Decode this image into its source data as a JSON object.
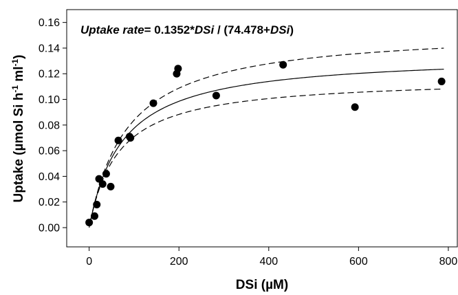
{
  "chart_data": {
    "type": "scatter",
    "title": "",
    "xlabel": "DSi (µM)",
    "ylabel": {
      "prefix": "Uptake (µmol Si h",
      "sup1": "-1",
      "middle": " ml",
      "sup2": "-1",
      "suffix": ")"
    },
    "xlim": [
      -50,
      820
    ],
    "ylim": [
      -0.015,
      0.17
    ],
    "x_ticks": [
      0,
      200,
      400,
      600,
      800
    ],
    "y_ticks": [
      0.0,
      0.02,
      0.04,
      0.06,
      0.08,
      0.1,
      0.12,
      0.14,
      0.16
    ],
    "y_tick_decimals": 2,
    "equation": {
      "label": "Uptake rate",
      "text": "= 0.1352*",
      "var1": "DSi",
      "mid": " / (74.478+",
      "var2": "DSi",
      "end": ")"
    },
    "points": [
      {
        "x": 0,
        "y": 0.004
      },
      {
        "x": 12,
        "y": 0.009
      },
      {
        "x": 17,
        "y": 0.018
      },
      {
        "x": 22,
        "y": 0.038
      },
      {
        "x": 30,
        "y": 0.034
      },
      {
        "x": 38,
        "y": 0.042
      },
      {
        "x": 48,
        "y": 0.032
      },
      {
        "x": 65,
        "y": 0.068
      },
      {
        "x": 90,
        "y": 0.071
      },
      {
        "x": 92,
        "y": 0.07
      },
      {
        "x": 143,
        "y": 0.097
      },
      {
        "x": 195,
        "y": 0.12
      },
      {
        "x": 198,
        "y": 0.124
      },
      {
        "x": 283,
        "y": 0.103
      },
      {
        "x": 432,
        "y": 0.127
      },
      {
        "x": 592,
        "y": 0.094
      },
      {
        "x": 785,
        "y": 0.114
      }
    ],
    "fit": {
      "model": "michaelis-menten",
      "vmax": 0.1352,
      "km": 74.478,
      "x_range": [
        0,
        790
      ],
      "style": "solid"
    },
    "confidence_bands": [
      {
        "name": "upper",
        "vmax": 0.155,
        "km": 85,
        "x_range": [
          3,
          790
        ],
        "style": "dashed"
      },
      {
        "name": "lower",
        "vmax": 0.117,
        "km": 65,
        "x_range": [
          3,
          790
        ],
        "style": "dashed"
      }
    ],
    "grid": false,
    "legend": "none",
    "colors": {
      "points": "#000000",
      "lines": "#000000",
      "background": "#ffffff"
    }
  }
}
